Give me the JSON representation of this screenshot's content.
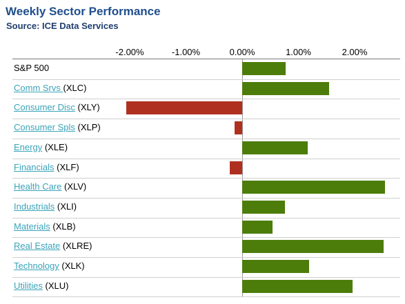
{
  "chart_data": {
    "type": "bar",
    "orientation": "horizontal",
    "title": "Weekly Sector Performance",
    "subtitle": "Source: ICE Data Services",
    "xlim": [
      -2.75,
      2.75
    ],
    "xticks": [
      -2,
      -1,
      0,
      1,
      2
    ],
    "tick_labels": [
      "-2.00%",
      "-1.00%",
      "0.00%",
      "1.00%",
      "2.00%"
    ],
    "grid": "horizontal row separators",
    "colors": {
      "positive": "#4c7d0a",
      "negative": "#b03020"
    },
    "rows": [
      {
        "name": "S&P 500",
        "ticker": "",
        "link": false,
        "value": 0.77
      },
      {
        "name": "Comm Srvs ",
        "ticker": "(XLC)",
        "link": true,
        "value": 1.54
      },
      {
        "name": "Consumer Disc",
        "ticker": "(XLY)",
        "link": true,
        "value": -2.06
      },
      {
        "name": "Consumer Spls",
        "ticker": "(XLP)",
        "link": true,
        "value": -0.14
      },
      {
        "name": "Energy",
        "ticker": "(XLE)",
        "link": true,
        "value": 1.16
      },
      {
        "name": "Financials",
        "ticker": "(XLF)",
        "link": true,
        "value": -0.22
      },
      {
        "name": "Health Care",
        "ticker": "(XLV)",
        "link": true,
        "value": 2.54
      },
      {
        "name": "Industrials",
        "ticker": "(XLI)",
        "link": true,
        "value": 0.76
      },
      {
        "name": "Materials",
        "ticker": "(XLB)",
        "link": true,
        "value": 0.54
      },
      {
        "name": "Real Estate",
        "ticker": "(XLRE)",
        "link": true,
        "value": 2.52
      },
      {
        "name": "Technology",
        "ticker": "(XLK)",
        "link": true,
        "value": 1.19
      },
      {
        "name": "Utilities",
        "ticker": "(XLU)",
        "link": true,
        "value": 1.96
      }
    ]
  }
}
